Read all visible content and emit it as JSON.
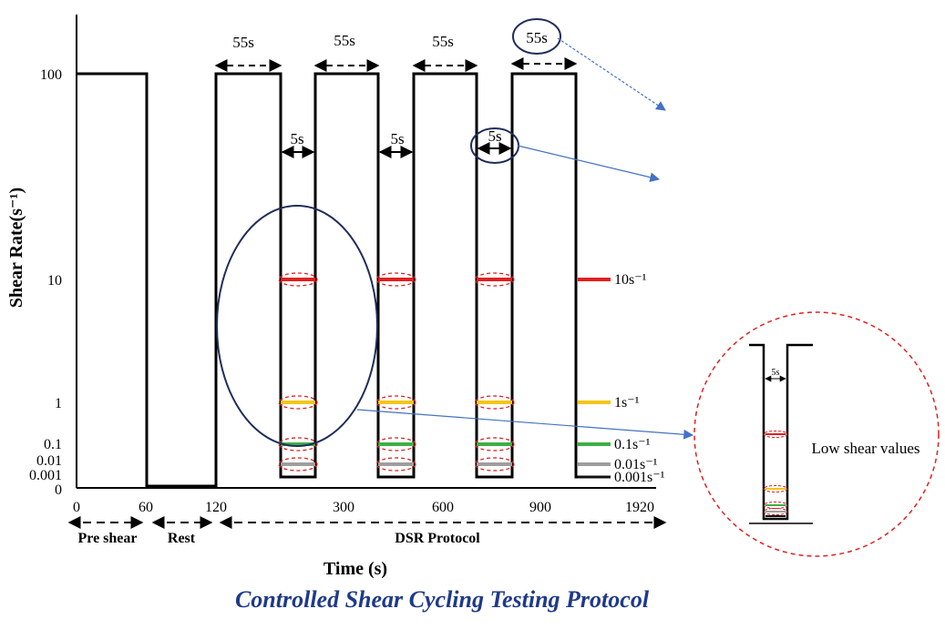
{
  "chart_data": {
    "type": "line",
    "title": "Controlled Shear Cycling Testing Protocol",
    "xlabel": "Time (s)",
    "ylabel": "Shear Rate(s⁻¹)",
    "x_tick_labels": [
      "0",
      "60",
      "120",
      "300",
      "600",
      "900",
      "1920"
    ],
    "y_tick_labels": [
      "0",
      "0.001",
      "0.01",
      "0.1",
      "1",
      "10",
      "100"
    ],
    "y_scale": "log",
    "phases": [
      {
        "label": "Pre shear",
        "from": "0",
        "to": "60"
      },
      {
        "label": "Rest",
        "from": "60",
        "to": "120"
      },
      {
        "label": "DSR Protocol",
        "from": "120",
        "to": "1920"
      }
    ],
    "high_shear_rate": 100,
    "high_shear_duration_label": "55s",
    "low_shear_duration_label": "5s",
    "low_shear_levels": [
      {
        "label": "10s⁻¹",
        "value": 10,
        "color": "#e02020"
      },
      {
        "label": "1s⁻¹",
        "value": 1,
        "color": "#f5c518"
      },
      {
        "label": "0.1s⁻¹",
        "value": 0.1,
        "color": "#3cb043"
      },
      {
        "label": "0.01s⁻¹",
        "value": 0.01,
        "color": "#9e9e9e"
      },
      {
        "label": "0.001s⁻¹",
        "value": 0.001,
        "color": "#111111"
      }
    ],
    "inset": {
      "text": "Low shear values",
      "duration_label": "5s"
    },
    "grid": false,
    "legend": "right"
  }
}
